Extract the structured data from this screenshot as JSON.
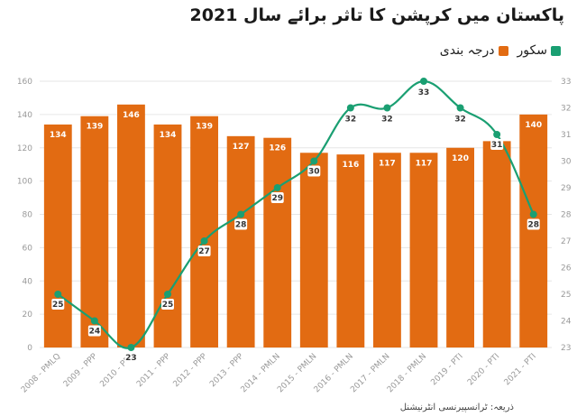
{
  "title": "پاکستان میں کرپشن کا تاثر برائے سال 2021",
  "legend": {
    "rank_label": "درجہ بندی",
    "score_label": "سکور"
  },
  "source": "ذریعہ: ٹرانسپیرنسی انٹرنیشنل",
  "colors": {
    "bar": "#e26b12",
    "line": "#1a9f72"
  },
  "chart_data": {
    "type": "bar",
    "categories": [
      "2008 - PMLQ",
      "2009 - PPP",
      "2010 - PPP",
      "2011 - PPP",
      "2012 - PPP",
      "2013 - PPP",
      "2014 - PMLN",
      "2015 - PMLN",
      "2016 - PMLN",
      "2017 - PMLN",
      "2018 - PMLN",
      "2019 - PTI",
      "2020 - PTI",
      "2021 - PTI"
    ],
    "series": [
      {
        "name": "درجہ بندی",
        "type": "bar",
        "axis": "left",
        "values": [
          134,
          139,
          146,
          134,
          139,
          127,
          126,
          117,
          116,
          117,
          117,
          120,
          124,
          140
        ],
        "labels": [
          "134",
          "139",
          "146",
          "134",
          "139",
          "127",
          "126",
          "",
          "116",
          "117",
          "117",
          "120",
          "",
          "140"
        ]
      },
      {
        "name": "سکور",
        "type": "line",
        "axis": "right",
        "values": [
          25,
          24,
          23,
          25,
          27,
          28,
          29,
          30,
          32,
          32,
          33,
          32,
          31,
          28
        ]
      }
    ],
    "y_left": {
      "min": 0,
      "max": 160,
      "ticks": [
        0,
        20,
        40,
        60,
        80,
        100,
        120,
        140,
        160
      ]
    },
    "y_right": {
      "min": 23,
      "max": 33,
      "ticks": [
        23,
        24,
        25,
        26,
        27,
        28,
        29,
        30,
        31,
        32,
        33
      ]
    },
    "grid": true,
    "legend_position": "top-right"
  }
}
